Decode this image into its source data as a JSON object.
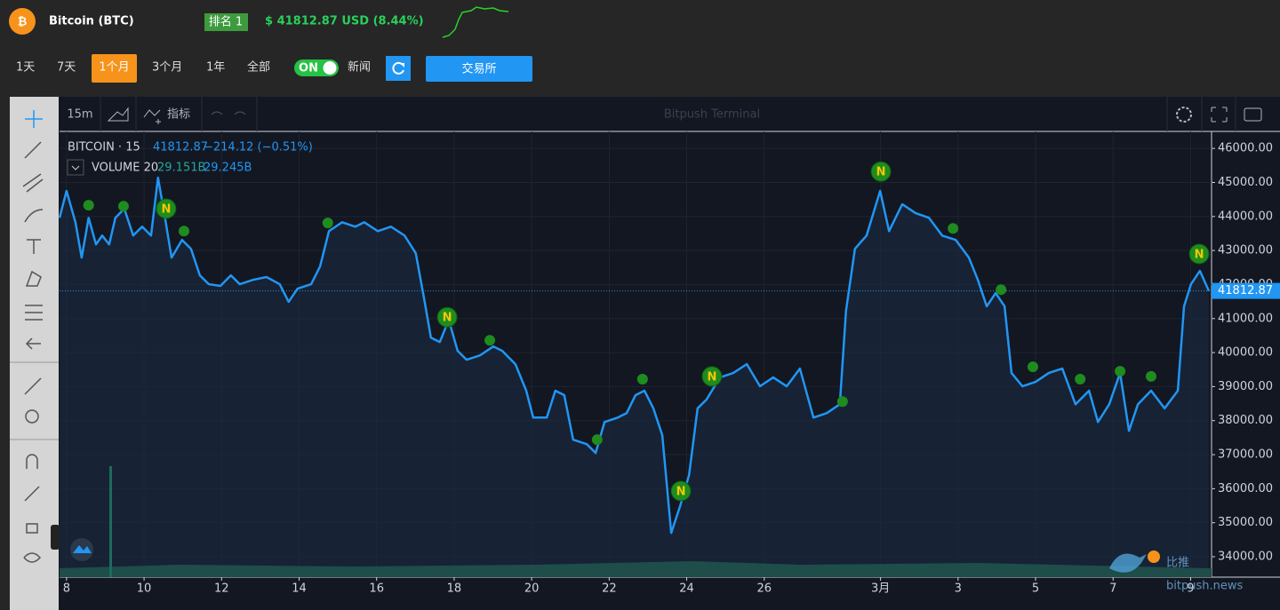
{
  "header": {
    "title": "Bitcoin (BTC)",
    "rank": "排名 1",
    "price": "$ 41812.87 USD (8.44%)"
  },
  "ranges": [
    "1天",
    "7天",
    "1个月",
    "3个月",
    "1年",
    "全部"
  ],
  "active_range": 2,
  "toggle": "ON",
  "news": "新闻",
  "exchange": "交易所",
  "toolbar": {
    "interval": "15m",
    "indicators": "指标",
    "watermark": "Bitpush Terminal"
  },
  "legend": {
    "symbol": "BITCOIN · 15",
    "last": "41812.87",
    "change": "−214.12 (−0.51%)",
    "volume": "VOLUME 20",
    "vol1": "29.151B",
    "vol2": "29.245B"
  },
  "brand": {
    "cn": "比推",
    "url": "bitpush.news"
  },
  "chart_data": {
    "type": "line",
    "color": "#2196f3",
    "grid": true,
    "x": [
      -0.18,
      0,
      0.23,
      0.39,
      0.57,
      0.76,
      0.92,
      1.1,
      1.26,
      1.49,
      1.72,
      1.95,
      2.18,
      2.36,
      2.52,
      2.71,
      2.98,
      3.21,
      3.44,
      3.67,
      3.97,
      4.24,
      4.47,
      4.82,
      5.16,
      5.5,
      5.73,
      5.96,
      6.31,
      6.54,
      6.77,
      7.11,
      7.45,
      7.68,
      8.03,
      8.37,
      8.72,
      9.01,
      9.24,
      9.4,
      9.63,
      9.86,
      10.09,
      10.32,
      10.67,
      11.01,
      11.24,
      11.58,
      11.86,
      12.04,
      12.39,
      12.61,
      12.84,
      13.07,
      13.42,
      13.65,
      13.88,
      14.22,
      14.45,
      14.68,
      14.91,
      15.14,
      15.37,
      15.6,
      15.83,
      16.06,
      16.28,
      16.51,
      16.86,
      17.2,
      17.55,
      17.89,
      18.23,
      18.58,
      18.92,
      19.27,
      19.61,
      19.95,
      20.11,
      20.34,
      20.64,
      20.99,
      21.22,
      21.56,
      21.9,
      22.25,
      22.59,
      22.94,
      23.28,
      23.51,
      23.74,
      23.97,
      24.2,
      24.38,
      24.66,
      25.0,
      25.34,
      25.69,
      26.03,
      26.38,
      26.61,
      26.9,
      27.18,
      27.41,
      27.64,
      27.98,
      28.33,
      28.67,
      28.83,
      29.01,
      29.24,
      29.47
    ],
    "values": [
      43960,
      44750,
      43830,
      42790,
      43960,
      43180,
      43440,
      43180,
      43960,
      44230,
      43440,
      43700,
      43440,
      45140,
      44100,
      42790,
      43310,
      43050,
      42270,
      42010,
      41960,
      42270,
      42010,
      42140,
      42220,
      42010,
      41490,
      41880,
      42010,
      42530,
      43570,
      43830,
      43700,
      43830,
      43570,
      43700,
      43440,
      42920,
      41490,
      40440,
      40310,
      40960,
      40050,
      39790,
      39920,
      40180,
      40050,
      39660,
      38880,
      38090,
      38090,
      38880,
      38750,
      37440,
      37310,
      37050,
      37960,
      38090,
      38220,
      38750,
      38880,
      38360,
      37570,
      34700,
      35490,
      36400,
      38360,
      38620,
      39270,
      39400,
      39660,
      39010,
      39270,
      39010,
      39530,
      38090,
      38220,
      38480,
      41230,
      43050,
      43440,
      44750,
      43570,
      44360,
      44100,
      43960,
      43440,
      43310,
      42790,
      42140,
      41360,
      41750,
      41360,
      39400,
      39010,
      39140,
      39400,
      39530,
      38480,
      38880,
      37960,
      38480,
      39400,
      37700,
      38480,
      38880,
      38360,
      38880,
      41360,
      42010,
      42400,
      41812.87
    ],
    "last_price": 41812.87,
    "xlim": [
      -0.18,
      29.54
    ],
    "ylim": [
      33400,
      46500
    ],
    "xticks": [
      {
        "value": 0,
        "label": "8"
      },
      {
        "value": 2,
        "label": "10"
      },
      {
        "value": 4,
        "label": "12"
      },
      {
        "value": 6,
        "label": "14"
      },
      {
        "value": 8,
        "label": "16"
      },
      {
        "value": 10,
        "label": "18"
      },
      {
        "value": 12,
        "label": "20"
      },
      {
        "value": 14,
        "label": "22"
      },
      {
        "value": 16,
        "label": "24"
      },
      {
        "value": 18,
        "label": "26"
      },
      {
        "value": 21,
        "label": "3月"
      },
      {
        "value": 23,
        "label": "3"
      },
      {
        "value": 25,
        "label": "5"
      },
      {
        "value": 27,
        "label": "7"
      },
      {
        "value": 29,
        "label": "9"
      }
    ],
    "yticks": [
      {
        "value": 34000,
        "label": "34000.00"
      },
      {
        "value": 35000,
        "label": "35000.00"
      },
      {
        "value": 36000,
        "label": "36000.00"
      },
      {
        "value": 37000,
        "label": "37000.00"
      },
      {
        "value": 38000,
        "label": "38000.00"
      },
      {
        "value": 39000,
        "label": "39000.00"
      },
      {
        "value": 40000,
        "label": "40000.00"
      },
      {
        "value": 41000,
        "label": "41000.00"
      },
      {
        "value": 42000,
        "label": "42000.00"
      },
      {
        "value": 43000,
        "label": "43000.00"
      },
      {
        "value": 44000,
        "label": "44000.00"
      },
      {
        "value": 45000,
        "label": "45000.00"
      },
      {
        "value": 46000,
        "label": "46000.00"
      }
    ],
    "marker_label": "N",
    "markers": [
      {
        "x": 0.57,
        "y": 44330,
        "large": false
      },
      {
        "x": 1.47,
        "y": 44300,
        "large": false
      },
      {
        "x": 2.57,
        "y": 44230,
        "large": true
      },
      {
        "x": 3.03,
        "y": 43570,
        "large": false
      },
      {
        "x": 6.74,
        "y": 43810,
        "large": false
      },
      {
        "x": 9.82,
        "y": 41040,
        "large": true
      },
      {
        "x": 10.92,
        "y": 40360,
        "large": false
      },
      {
        "x": 13.69,
        "y": 37440,
        "large": false
      },
      {
        "x": 14.86,
        "y": 39220,
        "large": false
      },
      {
        "x": 16.65,
        "y": 39300,
        "large": true
      },
      {
        "x": 15.85,
        "y": 35930,
        "large": true
      },
      {
        "x": 20.02,
        "y": 38560,
        "large": false
      },
      {
        "x": 21.01,
        "y": 45320,
        "large": true
      },
      {
        "x": 22.87,
        "y": 43650,
        "large": false
      },
      {
        "x": 24.11,
        "y": 41850,
        "large": false
      },
      {
        "x": 24.93,
        "y": 39580,
        "large": false
      },
      {
        "x": 26.15,
        "y": 39220,
        "large": false
      },
      {
        "x": 27.18,
        "y": 39450,
        "large": false
      },
      {
        "x": 27.98,
        "y": 39300,
        "large": false
      },
      {
        "x": 29.22,
        "y": 42900,
        "large": true
      }
    ]
  }
}
